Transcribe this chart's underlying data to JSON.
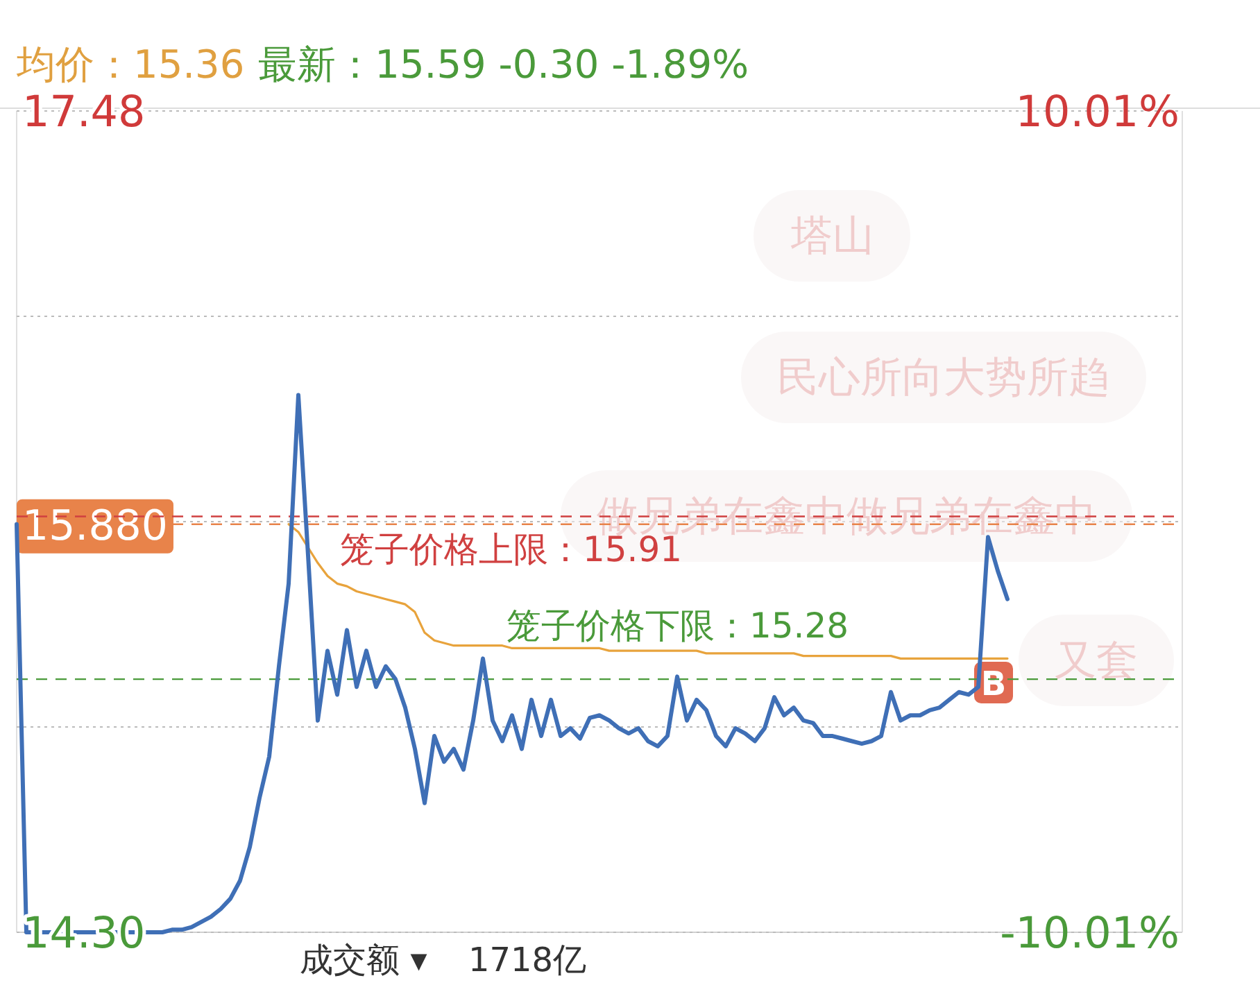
{
  "chart_data": {
    "type": "line",
    "title": "均价：15.36",
    "subtitle": "最新：15.59  -0.30  -1.89%",
    "categories": [
      null,
      null,
      null,
      null,
      null,
      null,
      null,
      null,
      null,
      null,
      null,
      null,
      null,
      null,
      null,
      null,
      null,
      null,
      null,
      null,
      null,
      null,
      null,
      null,
      null,
      null,
      null,
      null,
      null,
      null,
      null,
      null,
      null,
      null,
      null,
      null,
      null,
      null,
      null,
      null,
      null,
      null,
      null,
      null,
      null,
      null,
      null,
      null,
      null,
      null,
      null,
      null,
      null,
      null,
      null,
      null,
      null,
      null,
      null,
      null,
      null,
      null,
      null,
      null,
      null,
      null,
      null,
      null,
      null,
      null,
      null,
      null,
      null,
      null,
      null,
      null,
      null,
      null,
      null,
      null,
      null,
      null,
      null,
      null,
      null,
      null,
      null,
      null,
      null,
      null,
      null,
      null,
      null,
      null,
      null,
      null,
      null,
      null,
      null,
      null,
      null,
      null,
      null,
      null,
      null,
      null,
      null,
      null,
      null,
      null,
      null,
      null,
      null,
      null,
      null,
      null,
      null,
      null,
      null,
      null,
      null
    ],
    "series": [
      {
        "color": "#3f6fb6",
        "values": [
          15.88,
          14.3,
          14.3,
          14.3,
          14.3,
          14.3,
          14.3,
          14.3,
          14.3,
          14.3,
          14.3,
          14.3,
          14.3,
          14.3,
          14.3,
          14.3,
          14.31,
          14.31,
          14.32,
          14.34,
          14.36,
          14.39,
          14.43,
          14.5,
          14.63,
          14.82,
          14.98,
          15.33,
          15.65,
          16.38,
          15.76,
          15.12,
          15.39,
          15.22,
          15.47,
          15.25,
          15.39,
          15.25,
          15.33,
          15.28,
          15.17,
          15.01,
          14.8,
          15.06,
          14.96,
          15.01,
          14.93,
          15.12,
          15.36,
          15.12,
          15.04,
          15.14,
          15.01,
          15.2,
          15.06,
          15.2,
          15.06,
          15.09,
          15.05,
          15.13,
          15.14,
          15.12,
          15.09,
          15.07,
          15.09,
          15.04,
          15.02,
          15.06,
          15.29,
          15.12,
          15.2,
          15.16,
          15.06,
          15.02,
          15.09,
          15.07,
          15.04,
          15.09,
          15.21,
          15.14,
          15.17,
          15.12,
          15.11,
          15.06,
          15.06,
          15.05,
          15.04,
          15.03,
          15.04,
          15.06,
          15.23,
          15.12,
          15.14,
          15.14,
          15.16,
          15.17,
          15.2,
          15.23,
          15.22,
          15.25,
          15.83,
          15.7,
          15.59,
          null,
          null,
          null,
          null,
          null,
          null,
          null,
          null,
          null,
          null,
          null,
          null,
          null,
          null,
          null,
          null,
          null,
          null
        ]
      },
      {
        "color": "#e8a33c",
        "values": [
          null,
          null,
          null,
          null,
          null,
          null,
          null,
          null,
          null,
          null,
          null,
          null,
          null,
          null,
          null,
          null,
          null,
          null,
          null,
          null,
          null,
          null,
          null,
          null,
          null,
          null,
          null,
          null,
          15.88,
          15.85,
          15.79,
          15.73,
          15.68,
          15.65,
          15.64,
          15.62,
          15.61,
          15.6,
          15.59,
          15.58,
          15.57,
          15.54,
          15.46,
          15.43,
          15.42,
          15.41,
          15.41,
          15.41,
          15.41,
          15.41,
          15.41,
          15.4,
          15.4,
          15.4,
          15.4,
          15.4,
          15.4,
          15.4,
          15.4,
          15.4,
          15.4,
          15.39,
          15.39,
          15.39,
          15.39,
          15.39,
          15.39,
          15.39,
          15.39,
          15.39,
          15.39,
          15.38,
          15.38,
          15.38,
          15.38,
          15.38,
          15.38,
          15.38,
          15.38,
          15.38,
          15.38,
          15.37,
          15.37,
          15.37,
          15.37,
          15.37,
          15.37,
          15.37,
          15.37,
          15.37,
          15.37,
          15.36,
          15.36,
          15.36,
          15.36,
          15.36,
          15.36,
          15.36,
          15.36,
          15.36,
          15.36,
          15.36,
          15.36,
          null,
          null,
          null,
          null,
          null,
          null,
          null,
          null,
          null,
          null,
          null,
          null,
          null,
          null,
          null,
          null,
          null,
          null
        ]
      }
    ],
    "ylim": [
      14.3,
      17.48
    ],
    "yticks": [
      17.48,
      {
        "value": 16.685,
        "label": null
      },
      {
        "value": 15.89,
        "label": null
      },
      {
        "value": 15.095,
        "label": null
      },
      {
        "value": 14.3,
        "label": "14.30"
      }
    ],
    "y2lim": [
      -10.01,
      10.01
    ],
    "y2ticks": [
      {
        "value": 10.01,
        "label": "10.01%"
      },
      {
        "value": -10.01,
        "label": "-10.01%"
      }
    ],
    "grid": "y",
    "ref_lines": [
      {
        "axis": "y",
        "value": 15.88,
        "label": "15.880",
        "color": "#e8834a",
        "line_style": "dashed"
      },
      {
        "axis": "y",
        "value": 15.91,
        "label": "笼子价格上限：15.91",
        "color": "#d04040",
        "line_style": "dashed"
      },
      {
        "axis": "y",
        "value": 15.28,
        "label": "笼子价格下限：15.28",
        "color": "#4a9a3a",
        "line_style": "dashed"
      }
    ],
    "annotations": [
      "塔山",
      "民心所向大势所趋",
      "做兄弟在鑫中做兄弟在鑫中",
      "又套",
      "B",
      "成交额 ▾",
      "1718亿"
    ]
  }
}
